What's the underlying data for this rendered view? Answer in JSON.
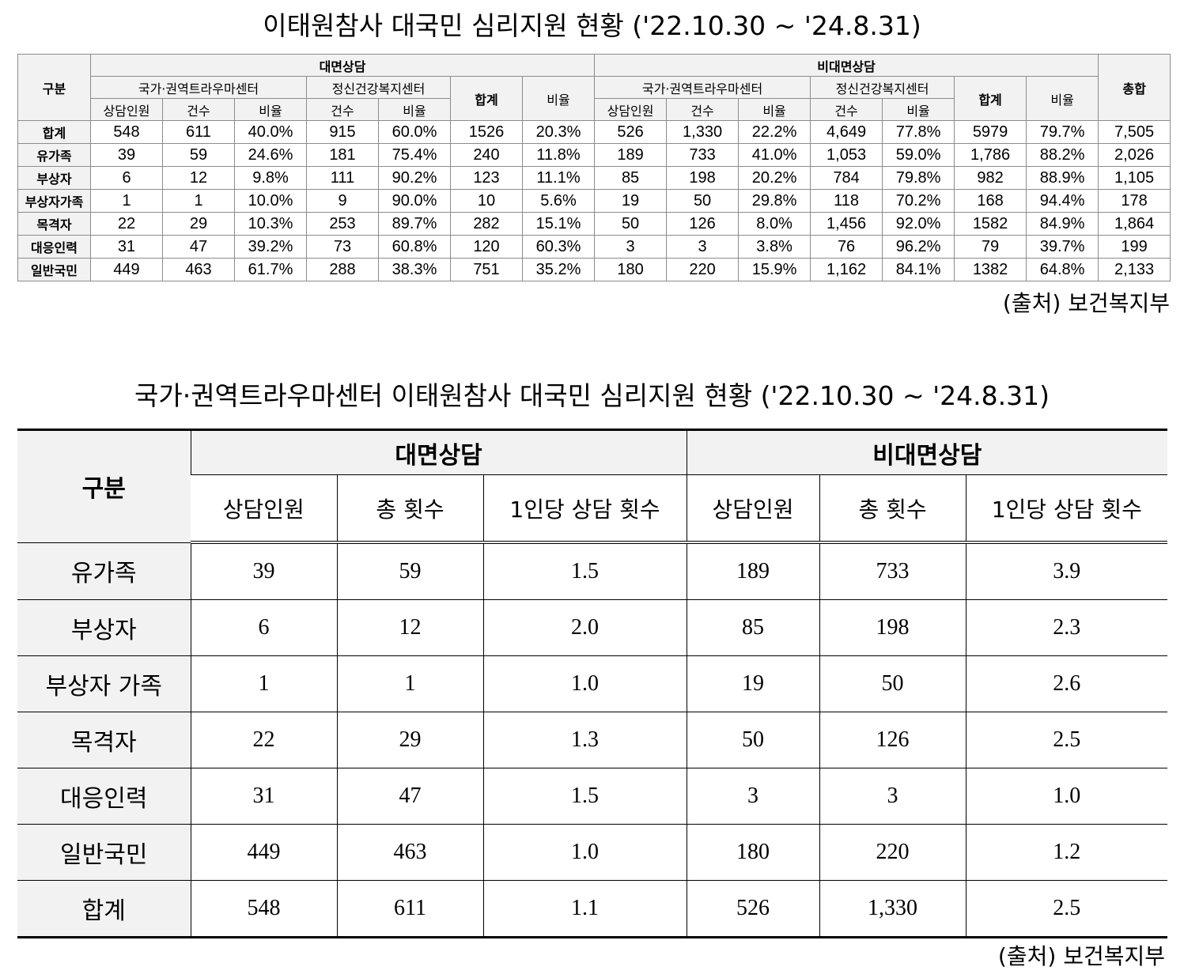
{
  "table1": {
    "title": "이태원참사 대국민 심리지원 현황 ('22.10.30 ~ '24.8.31)",
    "source": "(출처) 보건복지부",
    "headers": {
      "gubun": "구분",
      "face": "대면상담",
      "nonface": "비대면상담",
      "total": "총합",
      "trauma_center": "국가·권역트라우마센터",
      "mental_center": "정신건강복지센터",
      "sum": "합계",
      "ratio": "비율",
      "counsel_people": "상담인원",
      "cases": "건수"
    },
    "rows": [
      {
        "label": "합계",
        "cells": [
          "548",
          "611",
          "40.0%",
          "915",
          "60.0%",
          "1526",
          "20.3%",
          "526",
          "1,330",
          "22.2%",
          "4,649",
          "77.8%",
          "5979",
          "79.7%",
          "7,505"
        ]
      },
      {
        "label": "유가족",
        "cells": [
          "39",
          "59",
          "24.6%",
          "181",
          "75.4%",
          "240",
          "11.8%",
          "189",
          "733",
          "41.0%",
          "1,053",
          "59.0%",
          "1,786",
          "88.2%",
          "2,026"
        ]
      },
      {
        "label": "부상자",
        "cells": [
          "6",
          "12",
          "9.8%",
          "111",
          "90.2%",
          "123",
          "11.1%",
          "85",
          "198",
          "20.2%",
          "784",
          "79.8%",
          "982",
          "88.9%",
          "1,105"
        ]
      },
      {
        "label": "부상자가족",
        "cells": [
          "1",
          "1",
          "10.0%",
          "9",
          "90.0%",
          "10",
          "5.6%",
          "19",
          "50",
          "29.8%",
          "118",
          "70.2%",
          "168",
          "94.4%",
          "178"
        ]
      },
      {
        "label": "목격자",
        "cells": [
          "22",
          "29",
          "10.3%",
          "253",
          "89.7%",
          "282",
          "15.1%",
          "50",
          "126",
          "8.0%",
          "1,456",
          "92.0%",
          "1582",
          "84.9%",
          "1,864"
        ]
      },
      {
        "label": "대응인력",
        "cells": [
          "31",
          "47",
          "39.2%",
          "73",
          "60.8%",
          "120",
          "60.3%",
          "3",
          "3",
          "3.8%",
          "76",
          "96.2%",
          "79",
          "39.7%",
          "199"
        ]
      },
      {
        "label": "일반국민",
        "cells": [
          "449",
          "463",
          "61.7%",
          "288",
          "38.3%",
          "751",
          "35.2%",
          "180",
          "220",
          "15.9%",
          "1,162",
          "84.1%",
          "1382",
          "64.8%",
          "2,133"
        ]
      }
    ]
  },
  "table2": {
    "title": "국가·권역트라우마센터 이태원참사 대국민 심리지원 현황 ('22.10.30 ~ '24.8.31)",
    "source": "(출처) 보건복지부",
    "headers": {
      "gubun": "구분",
      "face": "대면상담",
      "nonface": "비대면상담",
      "counsel_people": "상담인원",
      "total_count": "총 횟수",
      "per_person": "1인당 상담 횟수"
    },
    "rows": [
      {
        "label": "유가족",
        "cells": [
          "39",
          "59",
          "1.5",
          "189",
          "733",
          "3.9"
        ]
      },
      {
        "label": "부상자",
        "cells": [
          "6",
          "12",
          "2.0",
          "85",
          "198",
          "2.3"
        ]
      },
      {
        "label": "부상자 가족",
        "cells": [
          "1",
          "1",
          "1.0",
          "19",
          "50",
          "2.6"
        ]
      },
      {
        "label": "목격자",
        "cells": [
          "22",
          "29",
          "1.3",
          "50",
          "126",
          "2.5"
        ]
      },
      {
        "label": "대응인력",
        "cells": [
          "31",
          "47",
          "1.5",
          "3",
          "3",
          "1.0"
        ]
      },
      {
        "label": "일반국민",
        "cells": [
          "449",
          "463",
          "1.0",
          "180",
          "220",
          "1.2"
        ]
      },
      {
        "label": "합계",
        "cells": [
          "548",
          "611",
          "1.1",
          "526",
          "1,330",
          "2.5"
        ]
      }
    ]
  }
}
